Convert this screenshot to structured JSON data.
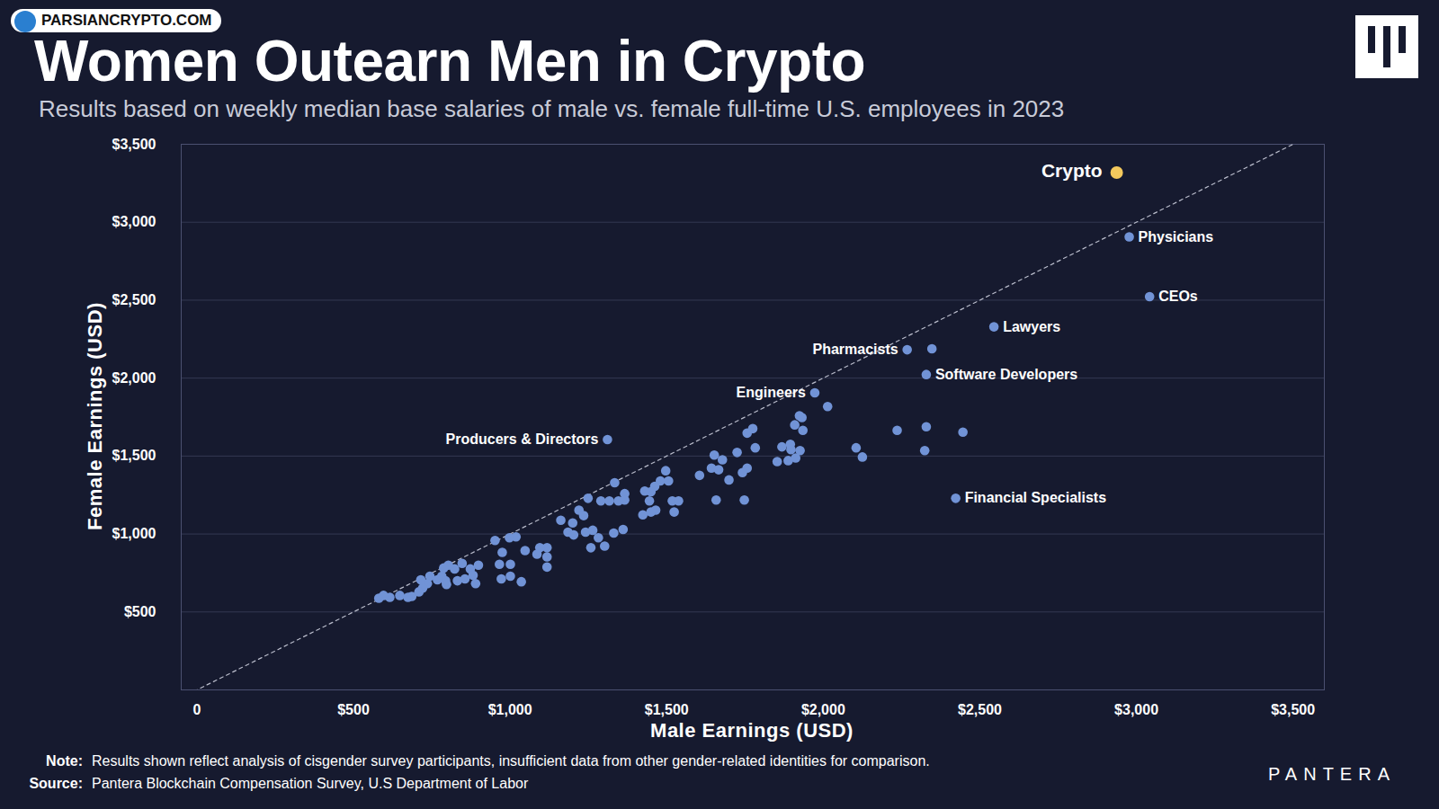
{
  "chart_data": {
    "type": "scatter",
    "title": "Women Outearn Men in Crypto",
    "subtitle": "Results based on weekly median base salaries of male vs. female full-time U.S. employees in 2023",
    "x_label": "Male Earnings (USD)",
    "y_label": "Female Earnings (USD)",
    "note_label": "Note:",
    "note": "Results shown reflect analysis of cisgender survey participants, insufficient data from other gender-related identities for comparison.",
    "source_label": "Source:",
    "source": "Pantera Blockchain Compensation Survey, U.S Department of Labor",
    "watermark": "PARSIANCRYPTO.COM",
    "brand": "PANTERA",
    "xlim": [
      -50,
      3600
    ],
    "ylim": [
      0,
      3500
    ],
    "xticks": [
      0,
      {
        "value": 500,
        "label": "$500"
      },
      {
        "value": 1000,
        "label": "$1,000"
      },
      {
        "value": 1500,
        "label": "$1,500"
      },
      {
        "value": 2000,
        "label": "$2,000"
      },
      {
        "value": 2500,
        "label": "$2,500"
      },
      {
        "value": 3000,
        "label": "$3,000"
      },
      {
        "value": 3500,
        "label": "$3,500"
      }
    ],
    "yticks": [
      {
        "value": 500,
        "label": "$500"
      },
      {
        "value": 1000,
        "label": "$1,000"
      },
      {
        "value": 1500,
        "label": "$1,500"
      },
      {
        "value": 2000,
        "label": "$2,000"
      },
      {
        "value": 2500,
        "label": "$2,500"
      },
      {
        "value": 3000,
        "label": "$3,000"
      },
      {
        "value": 3500,
        "label": "$3,500"
      }
    ],
    "grid": "y",
    "line_style": "dashed",
    "x": [
      2937,
      2977,
      3042,
      2545,
      2268,
      2329,
      1973,
      1311,
      2423,
      2347,
      2014,
      2236,
      2329,
      2446,
      2105,
      2125,
      2324,
      1924,
      1932,
      1909,
      1935,
      1897,
      1926,
      1868,
      1895,
      1853,
      1888,
      1912,
      1775,
      1757,
      1783,
      1725,
      1757,
      1742,
      1699,
      1643,
      1652,
      1678,
      1666,
      1605,
      1658,
      1748,
      1497,
      1480,
      1506,
      1462,
      1450,
      1430,
      1445,
      1465,
      1450,
      1424,
      1518,
      1538,
      1524,
      1334,
      1366,
      1366,
      1346,
      1317,
      1290,
      1249,
      1220,
      1235,
      1162,
      1200,
      1185,
      1203,
      1241,
      1264,
      1282,
      1258,
      1302,
      1331,
      1361,
      1118,
      1095,
      1118,
      1118,
      1086,
      1048,
      1019,
      998,
      952,
      975,
      966,
      1001,
      1001,
      972,
      1036,
      899,
      873,
      847,
      882,
      890,
      856,
      832,
      823,
      803,
      788,
      782,
      794,
      768,
      797,
      744,
      736,
      721,
      709,
      686,
      715,
      674,
      648,
      616,
      581,
      596
    ],
    "values": [
      3318,
      2906,
      2523,
      2329,
      2182,
      2023,
      1906,
      1606,
      1229,
      2188,
      1818,
      1665,
      1688,
      1653,
      1553,
      1494,
      1535,
      1759,
      1747,
      1700,
      1665,
      1541,
      1535,
      1559,
      1576,
      1465,
      1471,
      1488,
      1676,
      1647,
      1553,
      1523,
      1423,
      1394,
      1347,
      1423,
      1506,
      1476,
      1412,
      1376,
      1218,
      1218,
      1406,
      1341,
      1341,
      1306,
      1271,
      1276,
      1212,
      1153,
      1141,
      1123,
      1212,
      1212,
      1141,
      1329,
      1259,
      1218,
      1212,
      1212,
      1212,
      1229,
      1153,
      1118,
      1088,
      1071,
      1012,
      994,
      1012,
      1024,
      976,
      912,
      923,
      1006,
      1029,
      912,
      912,
      853,
      788,
      871,
      894,
      982,
      976,
      959,
      882,
      806,
      806,
      729,
      712,
      694,
      800,
      776,
      812,
      735,
      682,
      712,
      700,
      776,
      800,
      782,
      729,
      700,
      706,
      676,
      729,
      682,
      653,
      629,
      600,
      706,
      594,
      606,
      594,
      588,
      606
    ],
    "labels": [
      "Crypto",
      "Physicians",
      "CEOs",
      "Lawyers",
      "Pharmacists",
      "Software Developers",
      "Engineers",
      "Producers & Directors",
      "Financial Specialists",
      null,
      null,
      null,
      null,
      null,
      null,
      null,
      null,
      null,
      null,
      null,
      null,
      null,
      null,
      null,
      null,
      null,
      null,
      null,
      null,
      null,
      null,
      null,
      null,
      null,
      null,
      null,
      null,
      null,
      null,
      null,
      null,
      null,
      null,
      null,
      null,
      null,
      null,
      null,
      null,
      null,
      null,
      null,
      null,
      null,
      null,
      null,
      null,
      null,
      null,
      null,
      null,
      null,
      null,
      null,
      null,
      null,
      null,
      null,
      null,
      null,
      null,
      null,
      null,
      null,
      null,
      null,
      null,
      null,
      null,
      null,
      null,
      null,
      null,
      null,
      null,
      null,
      null,
      null,
      null,
      null,
      null,
      null,
      null,
      null,
      null,
      null,
      null,
      null,
      null,
      null,
      null,
      null,
      null,
      null,
      null,
      null,
      null,
      null,
      null,
      null,
      null,
      null,
      null,
      null,
      null
    ],
    "colors": [
      "#f4c95d",
      "#7193d6",
      "#7193d6",
      "#7193d6",
      "#7193d6",
      "#7193d6",
      "#7193d6",
      "#7193d6",
      "#7193d6",
      "#7193d6",
      "#7193d6",
      "#7193d6",
      "#7193d6",
      "#7193d6",
      "#7193d6",
      "#7193d6",
      "#7193d6",
      "#7193d6",
      "#7193d6",
      "#7193d6",
      "#7193d6",
      "#7193d6",
      "#7193d6",
      "#7193d6",
      "#7193d6",
      "#7193d6",
      "#7193d6",
      "#7193d6",
      "#7193d6",
      "#7193d6",
      "#7193d6",
      "#7193d6",
      "#7193d6",
      "#7193d6",
      "#7193d6",
      "#7193d6",
      "#7193d6",
      "#7193d6",
      "#7193d6",
      "#7193d6",
      "#7193d6",
      "#7193d6",
      "#7193d6",
      "#7193d6",
      "#7193d6",
      "#7193d6",
      "#7193d6",
      "#7193d6",
      "#7193d6",
      "#7193d6",
      "#7193d6",
      "#7193d6",
      "#7193d6",
      "#7193d6",
      "#7193d6",
      "#7193d6",
      "#7193d6",
      "#7193d6",
      "#7193d6",
      "#7193d6",
      "#7193d6",
      "#7193d6",
      "#7193d6",
      "#7193d6",
      "#7193d6",
      "#7193d6",
      "#7193d6",
      "#7193d6",
      "#7193d6",
      "#7193d6",
      "#7193d6",
      "#7193d6",
      "#7193d6",
      "#7193d6",
      "#7193d6",
      "#7193d6",
      "#7193d6",
      "#7193d6",
      "#7193d6",
      "#7193d6",
      "#7193d6",
      "#7193d6",
      "#7193d6",
      "#7193d6",
      "#7193d6",
      "#7193d6",
      "#7193d6",
      "#7193d6",
      "#7193d6",
      "#7193d6",
      "#7193d6",
      "#7193d6",
      "#7193d6",
      "#7193d6",
      "#7193d6",
      "#7193d6",
      "#7193d6",
      "#7193d6",
      "#7193d6",
      "#7193d6",
      "#7193d6",
      "#7193d6",
      "#7193d6",
      "#7193d6",
      "#7193d6",
      "#7193d6",
      "#7193d6",
      "#7193d6",
      "#7193d6",
      "#7193d6",
      "#7193d6",
      "#7193d6",
      "#7193d6",
      "#7193d6",
      "#7193d6"
    ]
  }
}
